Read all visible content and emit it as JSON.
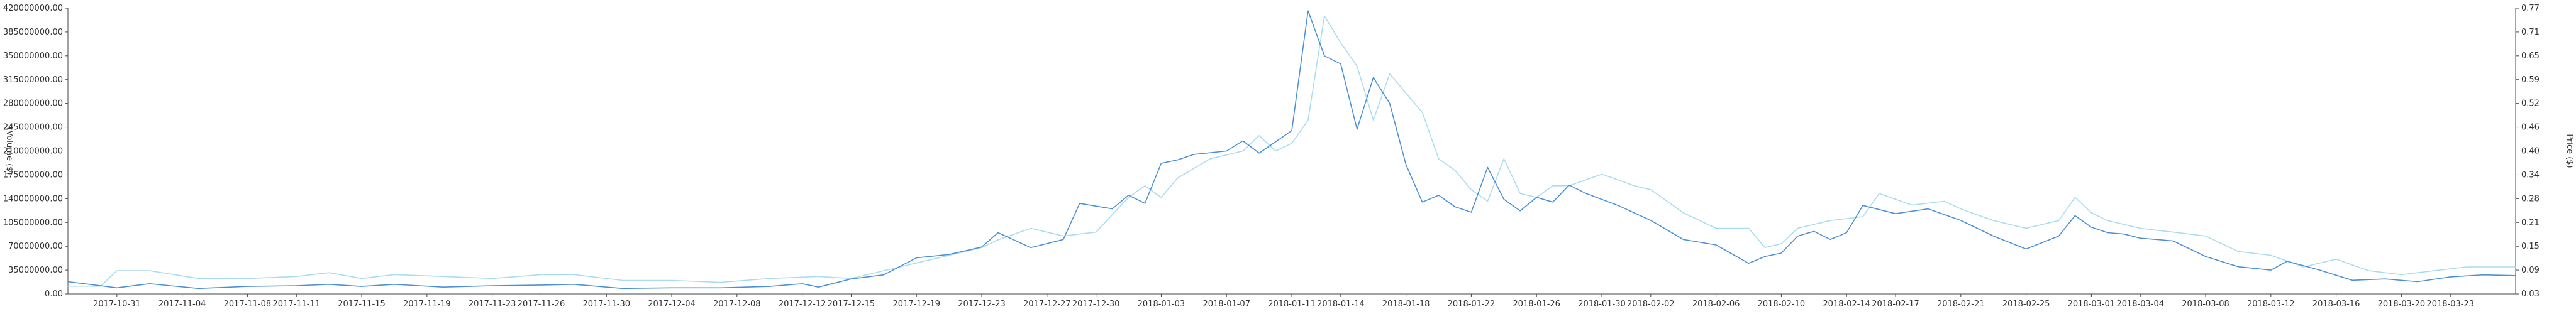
{
  "chart_data": {
    "type": "line",
    "title": "",
    "x_tick_labels": [
      "2017-10-31",
      "2017-11-04",
      "2017-11-08",
      "2017-11-11",
      "2017-11-15",
      "2017-11-19",
      "2017-11-23",
      "2017-11-26",
      "2017-11-30",
      "2017-12-04",
      "2017-12-08",
      "2017-12-12",
      "2017-12-15",
      "2017-12-19",
      "2017-12-23",
      "2017-12-27",
      "2017-12-30",
      "2018-01-03",
      "2018-01-07",
      "2018-01-11",
      "2018-01-14",
      "2018-01-18",
      "2018-01-22",
      "2018-01-26",
      "2018-01-30",
      "2018-02-02",
      "2018-02-06",
      "2018-02-10",
      "2018-02-14",
      "2018-02-17",
      "2018-02-21",
      "2018-02-25",
      "2018-03-01",
      "2018-03-04",
      "2018-03-08",
      "2018-03-12",
      "2018-03-16",
      "2018-03-20",
      "2018-03-23"
    ],
    "x_start": "2017-10-28",
    "x_end": "2018-03-27",
    "y_left": {
      "label": "(Volume ($)",
      "lim": [
        0,
        420000000
      ],
      "ticks": [
        "0.00",
        "35000000.00",
        "70000000.00",
        "105000000.00",
        "140000000.00",
        "175000000.00",
        "210000000.00",
        "245000000.00",
        "280000000.00",
        "315000000.00",
        "350000000.00",
        "385000000.00",
        "420000000.00"
      ]
    },
    "y_right": {
      "label": "Price ($)",
      "lim": [
        0.03,
        0.77
      ],
      "ticks": [
        "0.03",
        "0.09",
        "0.15",
        "0.21",
        "0.28",
        "0.34",
        "0.40",
        "0.46",
        "0.52",
        "0.59",
        "0.65",
        "0.71",
        "0.77"
      ]
    },
    "series": [
      {
        "axis": "left",
        "color": "#4a90d9",
        "points": [
          [
            "2017-10-28",
            18000000
          ],
          [
            "2017-10-31",
            9000000
          ],
          [
            "2017-11-02",
            15000000
          ],
          [
            "2017-11-05",
            8000000
          ],
          [
            "2017-11-08",
            11000000
          ],
          [
            "2017-11-11",
            12000000
          ],
          [
            "2017-11-13",
            14000000
          ],
          [
            "2017-11-15",
            11000000
          ],
          [
            "2017-11-17",
            14000000
          ],
          [
            "2017-11-20",
            10000000
          ],
          [
            "2017-11-23",
            12000000
          ],
          [
            "2017-11-26",
            13000000
          ],
          [
            "2017-11-28",
            14000000
          ],
          [
            "2017-12-01",
            8000000
          ],
          [
            "2017-12-04",
            9000000
          ],
          [
            "2017-12-07",
            9000000
          ],
          [
            "2017-12-10",
            11000000
          ],
          [
            "2017-12-12",
            15000000
          ],
          [
            "2017-12-13",
            10000000
          ],
          [
            "2017-12-15",
            22000000
          ],
          [
            "2017-12-17",
            28000000
          ],
          [
            "2017-12-19",
            53000000
          ],
          [
            "2017-12-21",
            58000000
          ],
          [
            "2017-12-23",
            69000000
          ],
          [
            "2017-12-24",
            90000000
          ],
          [
            "2017-12-26",
            68000000
          ],
          [
            "2017-12-28",
            80000000
          ],
          [
            "2017-12-29",
            133000000
          ],
          [
            "2017-12-31",
            125000000
          ],
          [
            "2018-01-01",
            145000000
          ],
          [
            "2018-01-02",
            133000000
          ],
          [
            "2018-01-03",
            192000000
          ],
          [
            "2018-01-04",
            197000000
          ],
          [
            "2018-01-05",
            205000000
          ],
          [
            "2018-01-07",
            210000000
          ],
          [
            "2018-01-08",
            225000000
          ],
          [
            "2018-01-09",
            207000000
          ],
          [
            "2018-01-11",
            240000000
          ],
          [
            "2018-01-12",
            416000000
          ],
          [
            "2018-01-13",
            350000000
          ],
          [
            "2018-01-14",
            338000000
          ],
          [
            "2018-01-15",
            242000000
          ],
          [
            "2018-01-16",
            318000000
          ],
          [
            "2018-01-17",
            280000000
          ],
          [
            "2018-01-18",
            190000000
          ],
          [
            "2018-01-19",
            135000000
          ],
          [
            "2018-01-20",
            145000000
          ],
          [
            "2018-01-21",
            128000000
          ],
          [
            "2018-01-22",
            120000000
          ],
          [
            "2018-01-23",
            186000000
          ],
          [
            "2018-01-24",
            139000000
          ],
          [
            "2018-01-25",
            122000000
          ],
          [
            "2018-01-26",
            142000000
          ],
          [
            "2018-01-27",
            135000000
          ],
          [
            "2018-01-28",
            160000000
          ],
          [
            "2018-01-29",
            148000000
          ],
          [
            "2018-01-31",
            130000000
          ],
          [
            "2018-02-02",
            108000000
          ],
          [
            "2018-02-04",
            80000000
          ],
          [
            "2018-02-06",
            72000000
          ],
          [
            "2018-02-08",
            45000000
          ],
          [
            "2018-02-09",
            55000000
          ],
          [
            "2018-02-10",
            60000000
          ],
          [
            "2018-02-11",
            85000000
          ],
          [
            "2018-02-12",
            92000000
          ],
          [
            "2018-02-13",
            80000000
          ],
          [
            "2018-02-14",
            90000000
          ],
          [
            "2018-02-15",
            130000000
          ],
          [
            "2018-02-17",
            118000000
          ],
          [
            "2018-02-19",
            125000000
          ],
          [
            "2018-02-21",
            108000000
          ],
          [
            "2018-02-23",
            85000000
          ],
          [
            "2018-02-25",
            66000000
          ],
          [
            "2018-02-27",
            85000000
          ],
          [
            "2018-02-28",
            115000000
          ],
          [
            "2018-03-01",
            98000000
          ],
          [
            "2018-03-02",
            90000000
          ],
          [
            "2018-03-03",
            88000000
          ],
          [
            "2018-03-04",
            82000000
          ],
          [
            "2018-03-06",
            78000000
          ],
          [
            "2018-03-08",
            55000000
          ],
          [
            "2018-03-10",
            40000000
          ],
          [
            "2018-03-12",
            35000000
          ],
          [
            "2018-03-13",
            48000000
          ],
          [
            "2018-03-15",
            35000000
          ],
          [
            "2018-03-17",
            20000000
          ],
          [
            "2018-03-19",
            22000000
          ],
          [
            "2018-03-21",
            18000000
          ],
          [
            "2018-03-23",
            25000000
          ],
          [
            "2018-03-25",
            28000000
          ],
          [
            "2018-03-27",
            27000000
          ]
        ]
      },
      {
        "axis": "right",
        "color": "#a8dcef",
        "points": [
          [
            "2017-10-28",
            0.05
          ],
          [
            "2017-10-30",
            0.05
          ],
          [
            "2017-10-31",
            0.09
          ],
          [
            "2017-11-02",
            0.09
          ],
          [
            "2017-11-05",
            0.07
          ],
          [
            "2017-11-08",
            0.07
          ],
          [
            "2017-11-11",
            0.075
          ],
          [
            "2017-11-13",
            0.085
          ],
          [
            "2017-11-15",
            0.07
          ],
          [
            "2017-11-17",
            0.08
          ],
          [
            "2017-11-20",
            0.075
          ],
          [
            "2017-11-23",
            0.07
          ],
          [
            "2017-11-26",
            0.08
          ],
          [
            "2017-11-28",
            0.08
          ],
          [
            "2017-12-01",
            0.065
          ],
          [
            "2017-12-04",
            0.065
          ],
          [
            "2017-12-07",
            0.06
          ],
          [
            "2017-12-10",
            0.07
          ],
          [
            "2017-12-13",
            0.075
          ],
          [
            "2017-12-15",
            0.07
          ],
          [
            "2017-12-17",
            0.09
          ],
          [
            "2017-12-20",
            0.12
          ],
          [
            "2017-12-23",
            0.15
          ],
          [
            "2017-12-24",
            0.17
          ],
          [
            "2017-12-26",
            0.2
          ],
          [
            "2017-12-28",
            0.18
          ],
          [
            "2017-12-30",
            0.19
          ],
          [
            "2018-01-01",
            0.28
          ],
          [
            "2018-01-02",
            0.31
          ],
          [
            "2018-01-03",
            0.28
          ],
          [
            "2018-01-04",
            0.33
          ],
          [
            "2018-01-06",
            0.38
          ],
          [
            "2018-01-08",
            0.4
          ],
          [
            "2018-01-09",
            0.44
          ],
          [
            "2018-01-10",
            0.4
          ],
          [
            "2018-01-11",
            0.42
          ],
          [
            "2018-01-12",
            0.48
          ],
          [
            "2018-01-13",
            0.75
          ],
          [
            "2018-01-14",
            0.68
          ],
          [
            "2018-01-15",
            0.62
          ],
          [
            "2018-01-16",
            0.48
          ],
          [
            "2018-01-17",
            0.6
          ],
          [
            "2018-01-18",
            0.55
          ],
          [
            "2018-01-19",
            0.5
          ],
          [
            "2018-01-20",
            0.38
          ],
          [
            "2018-01-21",
            0.35
          ],
          [
            "2018-01-22",
            0.3
          ],
          [
            "2018-01-23",
            0.27
          ],
          [
            "2018-01-24",
            0.38
          ],
          [
            "2018-01-25",
            0.29
          ],
          [
            "2018-01-26",
            0.28
          ],
          [
            "2018-01-27",
            0.31
          ],
          [
            "2018-01-28",
            0.31
          ],
          [
            "2018-01-30",
            0.34
          ],
          [
            "2018-02-01",
            0.31
          ],
          [
            "2018-02-02",
            0.3
          ],
          [
            "2018-02-04",
            0.24
          ],
          [
            "2018-02-06",
            0.2
          ],
          [
            "2018-02-08",
            0.2
          ],
          [
            "2018-02-09",
            0.15
          ],
          [
            "2018-02-10",
            0.16
          ],
          [
            "2018-02-11",
            0.2
          ],
          [
            "2018-02-13",
            0.22
          ],
          [
            "2018-02-15",
            0.23
          ],
          [
            "2018-02-16",
            0.29
          ],
          [
            "2018-02-18",
            0.26
          ],
          [
            "2018-02-20",
            0.27
          ],
          [
            "2018-02-21",
            0.25
          ],
          [
            "2018-02-23",
            0.22
          ],
          [
            "2018-02-25",
            0.2
          ],
          [
            "2018-02-27",
            0.22
          ],
          [
            "2018-02-28",
            0.28
          ],
          [
            "2018-03-01",
            0.24
          ],
          [
            "2018-03-02",
            0.22
          ],
          [
            "2018-03-04",
            0.2
          ],
          [
            "2018-03-06",
            0.19
          ],
          [
            "2018-03-08",
            0.18
          ],
          [
            "2018-03-10",
            0.14
          ],
          [
            "2018-03-12",
            0.13
          ],
          [
            "2018-03-14",
            0.1
          ],
          [
            "2018-03-16",
            0.12
          ],
          [
            "2018-03-18",
            0.09
          ],
          [
            "2018-03-20",
            0.08
          ],
          [
            "2018-03-22",
            0.09
          ],
          [
            "2018-03-24",
            0.1
          ],
          [
            "2018-03-27",
            0.1
          ]
        ]
      }
    ],
    "grid": false,
    "legend": "none"
  }
}
